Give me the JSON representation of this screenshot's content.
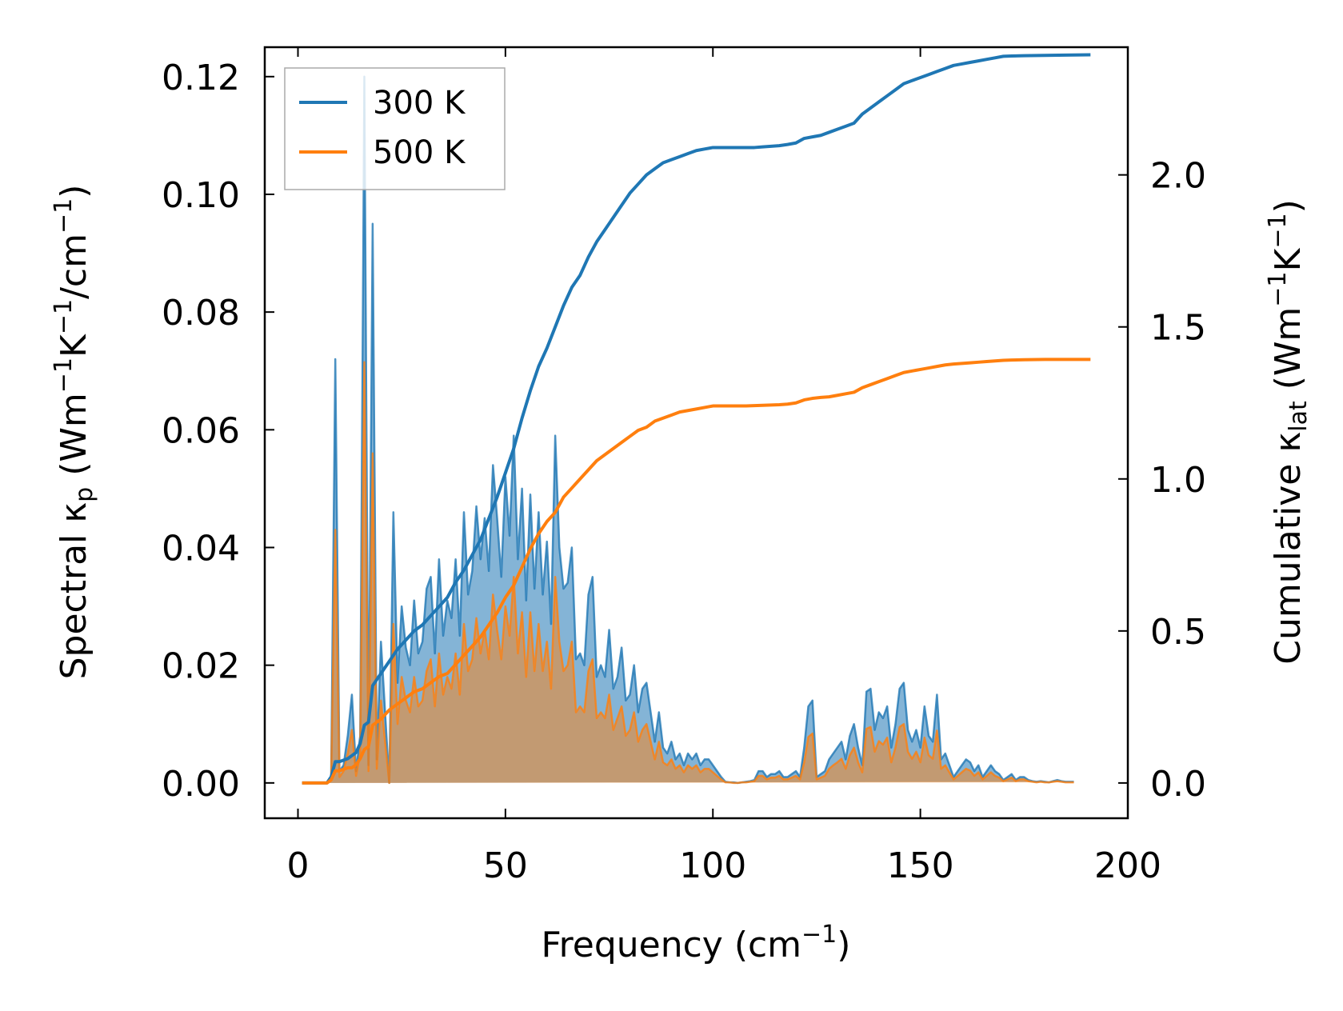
{
  "chart_data": {
    "type": "line",
    "xlabel": "Frequency (cm",
    "xlabel_sup": "−1",
    "xlabel_end": ")",
    "ylabel_left": {
      "prefix": "Spectral κ",
      "sub": "p",
      "unit_a": " (Wm",
      "sup_a": "−1",
      "unit_b": "K",
      "sup_b": "−1",
      "unit_c": "/cm",
      "sup_c": "−1",
      "unit_d": ")"
    },
    "ylabel_right": {
      "prefix": "Cumulative κ",
      "sub": "lat",
      "unit_a": " (Wm",
      "sup_a": "−1",
      "unit_b": "K",
      "sup_b": "−1",
      "unit_c": ")"
    },
    "xlim": [
      -8,
      200
    ],
    "ylim_left": [
      -0.006,
      0.125
    ],
    "ylim_right": [
      -0.116,
      2.42
    ],
    "x_ticks": [
      0,
      50,
      100,
      150,
      200
    ],
    "x_tick_labels": [
      "0",
      "50",
      "100",
      "150",
      "200"
    ],
    "y_left_ticks": [
      0.0,
      0.02,
      0.04,
      0.06,
      0.08,
      0.1,
      0.12
    ],
    "y_left_tick_labels": [
      "0.00",
      "0.02",
      "0.04",
      "0.06",
      "0.08",
      "0.10",
      "0.12"
    ],
    "y_right_ticks": [
      0.0,
      0.5,
      1.0,
      1.5,
      2.0
    ],
    "y_right_tick_labels": [
      "0.0",
      "0.5",
      "1.0",
      "1.5",
      "2.0"
    ],
    "legend": {
      "placement": "top-left",
      "entries": [
        "300 K",
        "500 K"
      ]
    },
    "colors": {
      "s300": "#1f77b4",
      "s500": "#ff7f0e",
      "fill300": "#1f77b4",
      "fill500": "#ff7f0e"
    },
    "spectral": {
      "x": [
        1,
        2,
        3,
        4,
        5,
        6,
        7,
        8,
        9,
        10,
        11,
        12,
        13,
        14,
        15,
        16,
        17,
        18,
        19,
        20,
        21,
        22,
        23,
        24,
        25,
        26,
        27,
        28,
        29,
        30,
        31,
        32,
        33,
        34,
        35,
        36,
        37,
        38,
        39,
        40,
        41,
        42,
        43,
        44,
        45,
        46,
        47,
        48,
        49,
        50,
        51,
        52,
        53,
        54,
        55,
        56,
        57,
        58,
        59,
        60,
        61,
        62,
        63,
        64,
        65,
        66,
        67,
        68,
        69,
        70,
        71,
        72,
        73,
        74,
        75,
        76,
        77,
        78,
        79,
        80,
        81,
        82,
        83,
        84,
        85,
        86,
        87,
        88,
        89,
        90,
        91,
        92,
        93,
        94,
        95,
        96,
        97,
        98,
        99,
        100,
        101,
        102,
        103,
        104,
        105,
        106,
        107,
        108,
        109,
        110,
        111,
        112,
        113,
        114,
        115,
        116,
        117,
        118,
        119,
        120,
        121,
        122,
        123,
        124,
        125,
        126,
        127,
        128,
        129,
        130,
        131,
        132,
        133,
        134,
        135,
        136,
        137,
        138,
        139,
        140,
        141,
        142,
        143,
        144,
        145,
        146,
        147,
        148,
        149,
        150,
        151,
        152,
        153,
        154,
        155,
        156,
        157,
        158,
        159,
        160,
        161,
        162,
        163,
        164,
        165,
        166,
        167,
        168,
        169,
        170,
        171,
        172,
        173,
        174,
        175,
        176,
        177,
        178,
        179,
        180,
        181,
        182,
        183,
        184,
        185,
        186,
        187,
        188,
        189,
        190,
        191
      ],
      "k300": [
        0,
        0,
        0,
        0,
        0,
        0,
        0,
        0.001,
        0.072,
        0.002,
        0.003,
        0.008,
        0.015,
        0.002,
        0.008,
        0.12,
        0.003,
        0.095,
        0.004,
        0.024,
        0.012,
        0,
        0.046,
        0.017,
        0.03,
        0.023,
        0.02,
        0.031,
        0.022,
        0.024,
        0.033,
        0.035,
        0.022,
        0.038,
        0.025,
        0.031,
        0.028,
        0.038,
        0.025,
        0.046,
        0.032,
        0.036,
        0.047,
        0.038,
        0.045,
        0.036,
        0.054,
        0.045,
        0.035,
        0.052,
        0.042,
        0.059,
        0.038,
        0.05,
        0.031,
        0.049,
        0.033,
        0.046,
        0.032,
        0.041,
        0.027,
        0.059,
        0.04,
        0.033,
        0.034,
        0.04,
        0.021,
        0.022,
        0.02,
        0.032,
        0.035,
        0.018,
        0.02,
        0.018,
        0.026,
        0.016,
        0.018,
        0.023,
        0.014,
        0.015,
        0.02,
        0.012,
        0.016,
        0.017,
        0.012,
        0.007,
        0.012,
        0.006,
        0.005,
        0.007,
        0.004,
        0.005,
        0.003,
        0.005,
        0.004,
        0.005,
        0.003,
        0.004,
        0.004,
        0.003,
        0.002,
        0.001,
        0.0002,
        0.0001,
        0.0001,
        0,
        0.0001,
        0.0002,
        0.0003,
        0.0005,
        0.002,
        0.002,
        0.001,
        0.0015,
        0.0015,
        0.002,
        0.001,
        0.001,
        0.0015,
        0.002,
        0.001,
        0.006,
        0.013,
        0.014,
        0.001,
        0.0015,
        0.002,
        0.004,
        0.005,
        0.006,
        0.007,
        0.004,
        0.008,
        0.01,
        0.006,
        0.003,
        0.0155,
        0.016,
        0.009,
        0.012,
        0.011,
        0.013,
        0.006,
        0.01,
        0.016,
        0.017,
        0.009,
        0.007,
        0.009,
        0.006,
        0.013,
        0.008,
        0.007,
        0.015,
        0.004,
        0.005,
        0.003,
        0.001,
        0.002,
        0.003,
        0.004,
        0.0035,
        0.002,
        0.003,
        0.001,
        0.002,
        0.003,
        0.002,
        0.0015,
        0.0005,
        0.001,
        0.0015,
        0.0005,
        0.001,
        0.001,
        0.0005,
        0.0003,
        0.0002,
        0.0003,
        0.0002,
        0.0001,
        0.0003,
        0.0005,
        0.0003,
        0.0002,
        0.0002,
        0.0002
      ],
      "k500": [
        0,
        0,
        0,
        0,
        0,
        0,
        0,
        0.0006,
        0.043,
        0.001,
        0.002,
        0.005,
        0.009,
        0.0012,
        0.005,
        0.0715,
        0.002,
        0.056,
        0.0024,
        0.014,
        0.007,
        0,
        0.027,
        0.01,
        0.018,
        0.014,
        0.012,
        0.018,
        0.013,
        0.014,
        0.019,
        0.021,
        0.013,
        0.022,
        0.015,
        0.018,
        0.016,
        0.022,
        0.015,
        0.027,
        0.019,
        0.021,
        0.028,
        0.022,
        0.026,
        0.021,
        0.032,
        0.026,
        0.021,
        0.03,
        0.025,
        0.035,
        0.022,
        0.029,
        0.018,
        0.029,
        0.019,
        0.027,
        0.019,
        0.024,
        0.016,
        0.035,
        0.024,
        0.019,
        0.02,
        0.024,
        0.012,
        0.013,
        0.012,
        0.019,
        0.021,
        0.011,
        0.012,
        0.011,
        0.015,
        0.009,
        0.011,
        0.013,
        0.008,
        0.009,
        0.012,
        0.007,
        0.009,
        0.01,
        0.007,
        0.004,
        0.007,
        0.0035,
        0.003,
        0.004,
        0.0024,
        0.003,
        0.0018,
        0.003,
        0.0024,
        0.003,
        0.0018,
        0.0024,
        0.0024,
        0.0018,
        0.0012,
        0.0006,
        0.0001,
        0.0001,
        0,
        0,
        0.0001,
        0.0001,
        0.0002,
        0.0003,
        0.0012,
        0.0012,
        0.0006,
        0.0009,
        0.0009,
        0.0012,
        0.0006,
        0.0006,
        0.0009,
        0.0012,
        0.0006,
        0.0035,
        0.0078,
        0.0084,
        0.0006,
        0.0009,
        0.0012,
        0.0024,
        0.003,
        0.0035,
        0.0041,
        0.0024,
        0.0047,
        0.006,
        0.0035,
        0.0018,
        0.0092,
        0.0095,
        0.0053,
        0.0071,
        0.0065,
        0.0077,
        0.0035,
        0.006,
        0.0095,
        0.01,
        0.0053,
        0.0041,
        0.0053,
        0.0035,
        0.0077,
        0.0047,
        0.0041,
        0.0089,
        0.0024,
        0.003,
        0.0018,
        0.0006,
        0.0012,
        0.0018,
        0.0024,
        0.0021,
        0.0012,
        0.0018,
        0.0006,
        0.0012,
        0.0018,
        0.0012,
        0.0009,
        0.0003,
        0.0006,
        0.0009,
        0.0003,
        0.0006,
        0.0006,
        0.0003,
        0.0002,
        0.0001,
        0.0002,
        0.0001,
        0.0001,
        0.0002,
        0.0003,
        0.0002,
        0.0001,
        0.0001,
        0.0001
      ]
    },
    "cumulative": {
      "x": [
        1,
        7,
        8,
        9,
        10,
        12,
        13,
        14,
        15,
        16,
        17,
        18,
        20,
        22,
        24,
        26,
        28,
        30,
        32,
        34,
        36,
        38,
        40,
        42,
        44,
        46,
        48,
        50,
        52,
        54,
        56,
        58,
        60,
        62,
        64,
        66,
        68,
        70,
        72,
        74,
        76,
        78,
        80,
        82,
        84,
        86,
        88,
        90,
        92,
        94,
        96,
        98,
        100,
        102,
        104,
        106,
        108,
        110,
        112,
        114,
        116,
        118,
        120,
        122,
        124,
        126,
        128,
        130,
        132,
        134,
        136,
        138,
        140,
        142,
        144,
        146,
        148,
        150,
        152,
        154,
        156,
        158,
        160,
        162,
        164,
        166,
        168,
        170,
        172,
        175,
        180,
        185,
        191
      ],
      "c300": [
        0,
        0,
        0.02,
        0.07,
        0.07,
        0.08,
        0.09,
        0.1,
        0.13,
        0.19,
        0.2,
        0.32,
        0.36,
        0.4,
        0.44,
        0.47,
        0.5,
        0.52,
        0.55,
        0.58,
        0.61,
        0.66,
        0.7,
        0.75,
        0.8,
        0.87,
        0.94,
        1.02,
        1.1,
        1.2,
        1.29,
        1.37,
        1.43,
        1.5,
        1.57,
        1.63,
        1.67,
        1.73,
        1.78,
        1.82,
        1.86,
        1.9,
        1.94,
        1.97,
        2.0,
        2.02,
        2.04,
        2.05,
        2.06,
        2.07,
        2.08,
        2.085,
        2.09,
        2.09,
        2.09,
        2.09,
        2.09,
        2.09,
        2.092,
        2.094,
        2.096,
        2.1,
        2.105,
        2.12,
        2.125,
        2.13,
        2.14,
        2.15,
        2.16,
        2.17,
        2.2,
        2.22,
        2.24,
        2.26,
        2.28,
        2.3,
        2.31,
        2.32,
        2.33,
        2.34,
        2.35,
        2.36,
        2.365,
        2.37,
        2.375,
        2.38,
        2.385,
        2.39,
        2.391,
        2.392,
        2.393,
        2.394,
        2.395
      ],
      "c500": [
        0,
        0,
        0.01,
        0.04,
        0.04,
        0.05,
        0.05,
        0.06,
        0.08,
        0.11,
        0.12,
        0.19,
        0.21,
        0.24,
        0.26,
        0.28,
        0.3,
        0.31,
        0.33,
        0.35,
        0.36,
        0.39,
        0.42,
        0.45,
        0.48,
        0.52,
        0.56,
        0.61,
        0.65,
        0.71,
        0.77,
        0.82,
        0.86,
        0.89,
        0.94,
        0.97,
        1.0,
        1.03,
        1.06,
        1.08,
        1.1,
        1.12,
        1.14,
        1.16,
        1.17,
        1.19,
        1.2,
        1.21,
        1.22,
        1.225,
        1.23,
        1.235,
        1.24,
        1.24,
        1.24,
        1.24,
        1.24,
        1.241,
        1.242,
        1.243,
        1.244,
        1.246,
        1.25,
        1.26,
        1.265,
        1.268,
        1.27,
        1.275,
        1.28,
        1.285,
        1.3,
        1.31,
        1.32,
        1.33,
        1.34,
        1.35,
        1.355,
        1.36,
        1.365,
        1.37,
        1.375,
        1.378,
        1.38,
        1.382,
        1.384,
        1.386,
        1.388,
        1.39,
        1.391,
        1.392,
        1.393,
        1.393,
        1.393
      ]
    }
  }
}
